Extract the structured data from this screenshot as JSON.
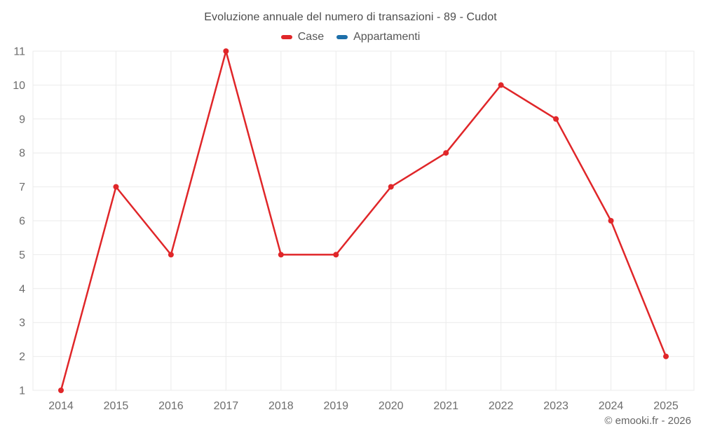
{
  "title": "Evoluzione annuale del numero di transazioni - 89 - Cudot",
  "footer": "© emooki.fr - 2026",
  "colors": {
    "case_red": "#e02629",
    "appartamenti_blue": "#1d6fa9",
    "gridline": "#ebebeb",
    "tick_text": "#6d6d6d",
    "title_text": "#4d4d4d"
  },
  "legend": [
    {
      "label": "Case",
      "color": "#e02629"
    },
    {
      "label": "Appartamenti",
      "color": "#1d6fa9"
    }
  ],
  "chart_data": {
    "type": "line",
    "title": "Evoluzione annuale del numero di transazioni - 89 - Cudot",
    "x": [
      2014,
      2015,
      2016,
      2017,
      2018,
      2019,
      2020,
      2021,
      2022,
      2023,
      2024,
      2025
    ],
    "series": [
      {
        "name": "Case",
        "color": "#e02629",
        "values": [
          1,
          7,
          5,
          11,
          5,
          5,
          7,
          8,
          10,
          9,
          6,
          2
        ]
      },
      {
        "name": "Appartamenti",
        "color": "#1d6fa9",
        "values": []
      }
    ],
    "xlabel": "",
    "ylabel": "",
    "ylim": [
      1,
      11
    ],
    "yticks": [
      1,
      2,
      3,
      4,
      5,
      6,
      7,
      8,
      9,
      10,
      11
    ],
    "grid": true,
    "legend_position": "top",
    "marker": "circle"
  }
}
